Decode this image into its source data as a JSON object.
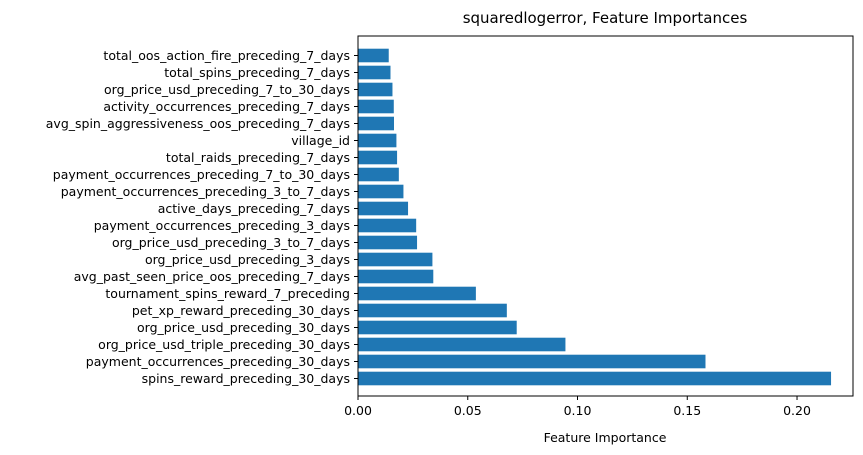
{
  "chart_data": {
    "type": "bar",
    "orientation": "horizontal",
    "title": "squaredlogerror, Feature Importances",
    "xlabel": "Feature Importance",
    "ylabel": "",
    "xlim": [
      0,
      0.2255
    ],
    "x_ticks": [
      "0.00",
      "0.05",
      "0.10",
      "0.15",
      "0.20"
    ],
    "grid": false,
    "bar_color": "#1f77b4",
    "categories": [
      "spins_reward_preceding_30_days",
      "payment_occurrences_preceding_30_days",
      "org_price_usd_triple_preceding_30_days",
      "org_price_usd_preceding_30_days",
      "pet_xp_reward_preceding_30_days",
      "tournament_spins_reward_7_preceding",
      "avg_past_seen_price_oos_preceding_7_days",
      "org_price_usd_preceding_3_days",
      "org_price_usd_preceding_3_to_7_days",
      "payment_occurrences_preceding_3_days",
      "active_days_preceding_7_days",
      "payment_occurrences_preceding_3_to_7_days",
      "payment_occurrences_preceding_7_to_30_days",
      "total_raids_preceding_7_days",
      "village_id",
      "avg_spin_aggressiveness_oos_preceding_7_days",
      "activity_occurrences_preceding_7_days",
      "org_price_usd_preceding_7_to_30_days",
      "total_spins_preceding_7_days",
      "total_oos_action_fire_preceding_7_days"
    ],
    "values": [
      0.2155,
      0.1583,
      0.0945,
      0.0723,
      0.0678,
      0.0537,
      0.0343,
      0.0339,
      0.0269,
      0.0265,
      0.0228,
      0.0207,
      0.0186,
      0.0178,
      0.0175,
      0.0164,
      0.0163,
      0.0157,
      0.0148,
      0.014
    ]
  }
}
